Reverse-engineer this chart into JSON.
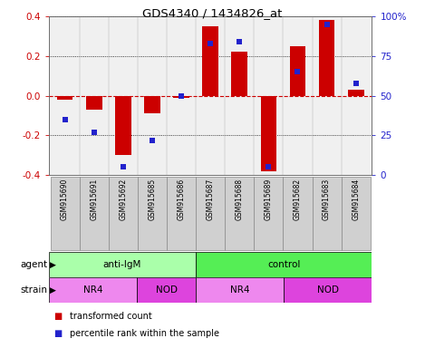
{
  "title": "GDS4340 / 1434826_at",
  "samples": [
    "GSM915690",
    "GSM915691",
    "GSM915692",
    "GSM915685",
    "GSM915686",
    "GSM915687",
    "GSM915688",
    "GSM915689",
    "GSM915682",
    "GSM915683",
    "GSM915684"
  ],
  "transformed_count": [
    -0.02,
    -0.07,
    -0.3,
    -0.09,
    -0.01,
    0.35,
    0.22,
    -0.38,
    0.25,
    0.38,
    0.03
  ],
  "percentile_rank": [
    35,
    27,
    5,
    22,
    50,
    83,
    84,
    5,
    65,
    95,
    58
  ],
  "ylim": [
    -0.4,
    0.4
  ],
  "yticks_left": [
    -0.4,
    -0.2,
    0.0,
    0.2,
    0.4
  ],
  "yticks_right": [
    0,
    25,
    50,
    75,
    100
  ],
  "bar_color": "#cc0000",
  "dot_color": "#2222cc",
  "zero_line_color": "#cc0000",
  "agent_groups": [
    {
      "label": "anti-IgM",
      "start": 0,
      "end": 5,
      "color": "#aaffaa"
    },
    {
      "label": "control",
      "start": 5,
      "end": 11,
      "color": "#55ee55"
    }
  ],
  "strain_groups": [
    {
      "label": "NR4",
      "start": 0,
      "end": 3,
      "color": "#ee88ee"
    },
    {
      "label": "NOD",
      "start": 3,
      "end": 5,
      "color": "#dd44dd"
    },
    {
      "label": "NR4",
      "start": 5,
      "end": 8,
      "color": "#ee88ee"
    },
    {
      "label": "NOD",
      "start": 8,
      "end": 11,
      "color": "#dd44dd"
    }
  ],
  "legend_items": [
    {
      "label": "transformed count",
      "color": "#cc0000"
    },
    {
      "label": "percentile rank within the sample",
      "color": "#2222cc"
    }
  ],
  "bar_width": 0.55,
  "dot_size": 18,
  "label_bg": "#d0d0d0",
  "label_edge": "#888888"
}
